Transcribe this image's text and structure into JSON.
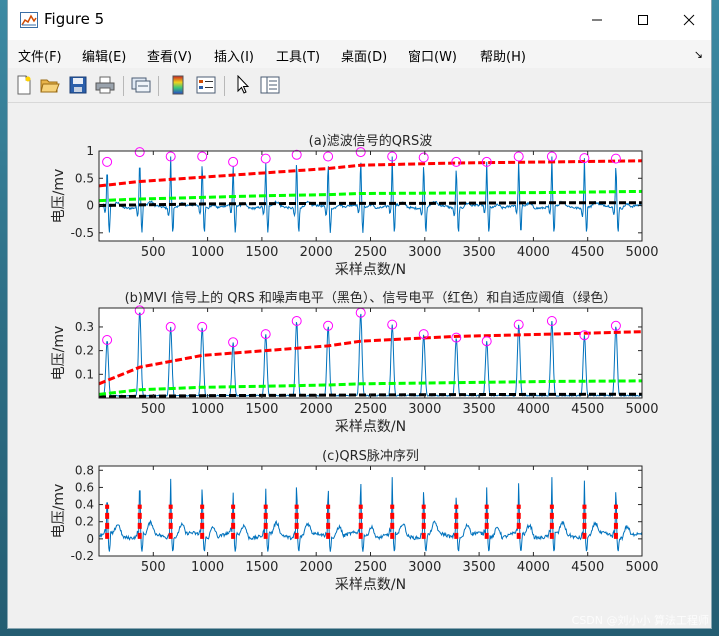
{
  "window": {
    "title": "Figure 5",
    "controls": {
      "minimize": "–",
      "maximize": "☐",
      "close": "✕"
    }
  },
  "menu": {
    "items": [
      "文件(F)",
      "编辑(E)",
      "查看(V)",
      "插入(I)",
      "工具(T)",
      "桌面(D)",
      "窗口(W)",
      "帮助(H)"
    ],
    "dock_arrow": "↘"
  },
  "toolbar": {
    "icons": [
      "new-figure-icon",
      "open-file-icon",
      "save-icon",
      "print-icon",
      "link-plot-icon",
      "colorbar-icon",
      "legend-icon",
      "pointer-icon",
      "property-inspector-icon"
    ]
  },
  "colors": {
    "signal": "#0072bd",
    "signal_level": "#ff0000",
    "noise_level": "#000000",
    "threshold": "#00ff00",
    "peak_marker": "#ff00ff"
  },
  "watermark": "CSDN @刘小小 算法工程师",
  "chart_data": [
    {
      "type": "line",
      "title": "(a)滤波信号的QRS波",
      "xlabel": "采样点数/N",
      "ylabel": "电压/mv",
      "xlim": [
        0,
        5000
      ],
      "ylim": [
        -0.65,
        1.0
      ],
      "xticks": [
        500,
        1000,
        1500,
        2000,
        2500,
        3000,
        3500,
        4000,
        4500,
        5000
      ],
      "yticks": [
        -0.5,
        0,
        0.5,
        1
      ],
      "grid": false,
      "qrs_peaks_x": [
        75,
        375,
        660,
        950,
        1235,
        1535,
        1820,
        2110,
        2410,
        2700,
        2990,
        3290,
        3570,
        3865,
        4170,
        4470,
        4760
      ],
      "peak_markers_y": [
        0.8,
        0.98,
        0.9,
        0.9,
        0.8,
        0.86,
        0.93,
        0.9,
        0.98,
        0.9,
        0.88,
        0.8,
        0.8,
        0.9,
        0.9,
        0.87,
        0.86
      ],
      "signal_level": {
        "x": [
          0,
          375,
          950,
          1535,
          2110,
          2410,
          3290,
          4170,
          5000
        ],
        "y": [
          0.36,
          0.44,
          0.52,
          0.6,
          0.68,
          0.74,
          0.78,
          0.8,
          0.82
        ]
      },
      "threshold": {
        "x": [
          0,
          375,
          950,
          1535,
          2110,
          2410,
          3290,
          4170,
          5000
        ],
        "y": [
          0.09,
          0.12,
          0.15,
          0.18,
          0.2,
          0.22,
          0.23,
          0.24,
          0.26
        ]
      },
      "noise_level": {
        "x": [
          0,
          1000,
          2000,
          3000,
          4000,
          5000
        ],
        "y": [
          0.0,
          0.03,
          0.04,
          0.04,
          0.05,
          0.05
        ]
      }
    },
    {
      "type": "line",
      "title": "(b)MVI 信号上的 QRS 和噪声电平（黑色）、信号电平（红色）和自适应阈值（绿色）",
      "xlabel": "采样点数/N",
      "ylabel": "电压/mv",
      "xlim": [
        0,
        5000
      ],
      "ylim": [
        0,
        0.38
      ],
      "xticks": [
        500,
        1000,
        1500,
        2000,
        2500,
        3000,
        3500,
        4000,
        4500,
        5000
      ],
      "yticks": [
        0.1,
        0.2,
        0.3
      ],
      "grid": false,
      "qrs_peaks_x": [
        75,
        375,
        660,
        950,
        1235,
        1535,
        1820,
        2110,
        2410,
        2700,
        2990,
        3290,
        3570,
        3865,
        4170,
        4470,
        4760
      ],
      "peak_markers_y": [
        0.245,
        0.37,
        0.3,
        0.3,
        0.235,
        0.27,
        0.325,
        0.305,
        0.36,
        0.31,
        0.27,
        0.255,
        0.24,
        0.31,
        0.325,
        0.265,
        0.305
      ],
      "signal_level": {
        "x": [
          0,
          375,
          950,
          1535,
          2110,
          2410,
          3290,
          4170,
          5000
        ],
        "y": [
          0.06,
          0.13,
          0.18,
          0.2,
          0.22,
          0.24,
          0.26,
          0.27,
          0.28
        ]
      },
      "threshold": {
        "x": [
          0,
          375,
          950,
          1535,
          2110,
          2410,
          3290,
          4170,
          5000
        ],
        "y": [
          0.015,
          0.035,
          0.045,
          0.05,
          0.055,
          0.06,
          0.065,
          0.07,
          0.072
        ]
      },
      "noise_level": {
        "x": [
          0,
          1000,
          2000,
          3000,
          4000,
          5000
        ],
        "y": [
          0.005,
          0.01,
          0.012,
          0.014,
          0.015,
          0.016
        ]
      }
    },
    {
      "type": "line",
      "title": "(c)QRS脉冲序列",
      "xlabel": "采样点数/N",
      "ylabel": "电压/mv",
      "xlim": [
        0,
        5000
      ],
      "ylim": [
        -0.2,
        0.85
      ],
      "xticks": [
        500,
        1000,
        1500,
        2000,
        2500,
        3000,
        3500,
        4000,
        4500,
        5000
      ],
      "yticks": [
        -0.2,
        0,
        0.2,
        0.4,
        0.6,
        0.8
      ],
      "grid": false,
      "qrs_peaks_x": [
        75,
        375,
        660,
        950,
        1235,
        1535,
        1820,
        2110,
        2410,
        2700,
        2990,
        3290,
        3570,
        3865,
        4170,
        4470,
        4760
      ],
      "signal_peak_y": [
        0.6,
        0.8,
        0.7,
        0.72,
        0.6,
        0.65,
        0.75,
        0.7,
        0.8,
        0.72,
        0.68,
        0.6,
        0.6,
        0.72,
        0.72,
        0.68,
        0.68
      ],
      "pulse_train": {
        "low": 0,
        "high": 0.4
      }
    }
  ]
}
